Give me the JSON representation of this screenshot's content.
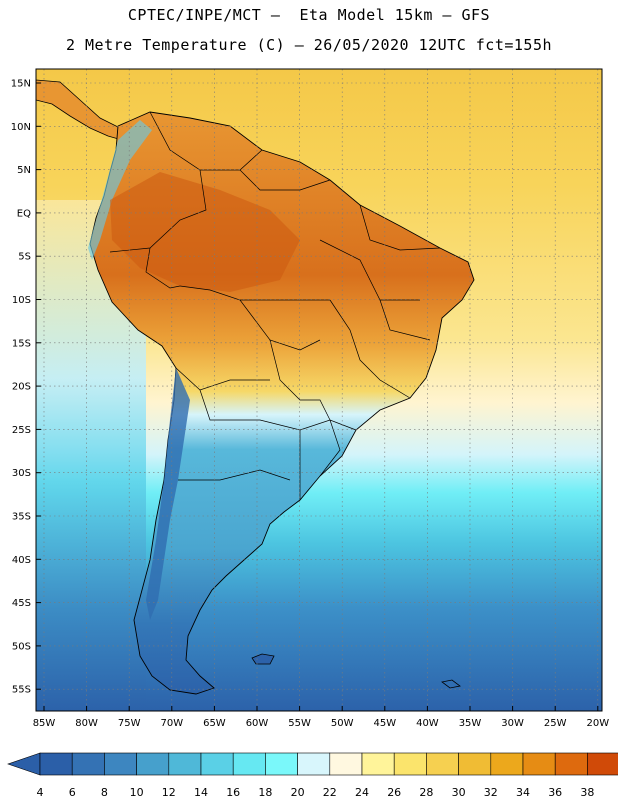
{
  "header": {
    "line1": "CPTEC/INPE/MCT –  Eta Model 15km – GFS",
    "line2": "2 Metre Temperature (C) – 26/05/2020 12UTC fct=155h"
  },
  "axes": {
    "lat_labels": [
      "15N",
      "10N",
      "5N",
      "EQ",
      "5S",
      "10S",
      "15S",
      "20S",
      "25S",
      "30S",
      "35S",
      "40S",
      "45S",
      "50S",
      "55S"
    ],
    "lon_labels": [
      "85W",
      "80W",
      "75W",
      "70W",
      "65W",
      "60W",
      "55W",
      "50W",
      "45W",
      "40W",
      "35W",
      "30W",
      "25W",
      "20W"
    ]
  },
  "legend": {
    "labels": [
      "4",
      "6",
      "8",
      "10",
      "12",
      "14",
      "16",
      "18",
      "20",
      "22",
      "24",
      "26",
      "28",
      "30",
      "32",
      "34",
      "36",
      "38"
    ],
    "colors": [
      "#2b5fa8",
      "#3472b4",
      "#3d86c0",
      "#46a0cc",
      "#4fb8d8",
      "#5ad0e6",
      "#66e8f2",
      "#7af8fa",
      "#d8f6fc",
      "#fff8e0",
      "#fff49a",
      "#fbe46c",
      "#f6d050",
      "#f0bc34",
      "#eca81c",
      "#e68c14",
      "#de6a0e",
      "#d04a08",
      "#c03804"
    ]
  },
  "colors": {
    "ocean_north": "#f8d45a",
    "ocean_mid": "#fff0a8",
    "ocean_south": "#3a8ac4",
    "land_hot": "#dc7a22",
    "land_warm": "#eeaa3c",
    "land_cool": "#4ab4d8",
    "land_cold": "#3070b0"
  }
}
